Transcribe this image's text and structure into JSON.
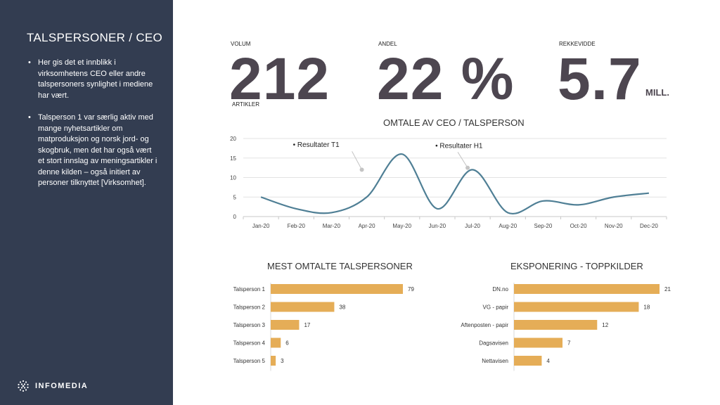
{
  "sidebar": {
    "title": "TALSPERSONER / CEO",
    "bullets": [
      "Her gis det et innblikk i virksomhetens CEO eller andre talspersoners synlighet i mediene har vært.",
      "Talsperson 1 var særlig aktiv med mange nyhetsartikler om matproduksjon og  norsk jord- og skogbruk, men det har også vært et stort innslag av meningsartikler i denne kilden – også initiert av personer tilknyttet [Virksomhet]."
    ],
    "logo_text": "INFOMEDIA"
  },
  "kpis": {
    "volum": {
      "label": "VOLUM",
      "value": "212",
      "sublabel": "ARTIKLER"
    },
    "andel": {
      "label": "ANDEL",
      "value": "22 %"
    },
    "rekkevidde": {
      "label": "REKKEVIDDE",
      "value": "5.7",
      "unit": "MILL."
    }
  },
  "colors": {
    "sidebar": "#333d51",
    "line": "#4f7f95",
    "bar": "#e5ad57",
    "kpi": "#4d4650"
  },
  "chart_data": [
    {
      "type": "line",
      "title": "OMTALE AV CEO / TALSPERSON",
      "categories": [
        "Jan-20",
        "Feb-20",
        "Mar-20",
        "Apr-20",
        "May-20",
        "Jun-20",
        "Jul-20",
        "Aug-20",
        "Sep-20",
        "Oct-20",
        "Nov-20",
        "Dec-20"
      ],
      "values": [
        5,
        2,
        1,
        5,
        16,
        2,
        12,
        1,
        4,
        3,
        5,
        6
      ],
      "ylim": [
        0,
        20
      ],
      "yticks": [
        0,
        5,
        10,
        15,
        20
      ],
      "grid": true,
      "annotations": [
        {
          "text": "Resultater T1",
          "x": "Apr-20",
          "y": 12
        },
        {
          "text": "Resultater H1",
          "x": "Jul-20",
          "y": 12.5
        }
      ]
    },
    {
      "type": "bar",
      "orientation": "horizontal",
      "title": "MEST OMTALTE TALSPERSONER",
      "categories": [
        "Talsperson 1",
        "Talsperson 2",
        "Talsperson 3",
        "Talsperson 4",
        "Talsperson 5"
      ],
      "values": [
        79,
        38,
        17,
        6,
        3
      ],
      "xlim": [
        0,
        79
      ]
    },
    {
      "type": "bar",
      "orientation": "horizontal",
      "title": "EKSPONERING - TOPPKILDER",
      "categories": [
        "DN.no",
        "VG - papir",
        "Aftenposten - papir",
        "Dagsavisen",
        "Nettavisen"
      ],
      "values": [
        21,
        18,
        12,
        7,
        4
      ],
      "xlim": [
        0,
        21
      ]
    }
  ]
}
